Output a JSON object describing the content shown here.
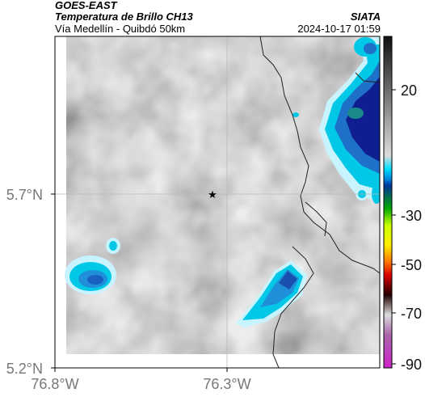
{
  "header": {
    "source": "GOES-EAST",
    "product": "Temperatura de Brillo CH13",
    "region": "Vía Medellín - Quibdó 50km",
    "organization": "SIATA",
    "timestamp": "2024-10-17 01:59"
  },
  "axes": {
    "x_ticks": [
      {
        "label": "76.8°W",
        "lon": -76.8
      },
      {
        "label": "76.3°W",
        "lon": -76.3
      }
    ],
    "y_ticks": [
      {
        "label": "5.7°N",
        "lat": 5.7
      },
      {
        "label": "5.2°N",
        "lat": 5.2
      }
    ]
  },
  "colorbar": {
    "ticks": [
      {
        "label": "20",
        "value": 20
      },
      {
        "label": "-30",
        "value": -30
      },
      {
        "label": "-50",
        "value": -50
      },
      {
        "label": "-70",
        "value": -70
      },
      {
        "label": "-90",
        "value": -90
      }
    ]
  },
  "colors": {
    "cloud_grey": "#8f8f8f",
    "cold_blue": "#1e6fc8",
    "deep_blue": "#10108a",
    "cyan": "#00c8e6",
    "border_line": "#222222"
  },
  "marker": {
    "name": "star-marker",
    "lon": -76.33,
    "lat": 5.7
  }
}
